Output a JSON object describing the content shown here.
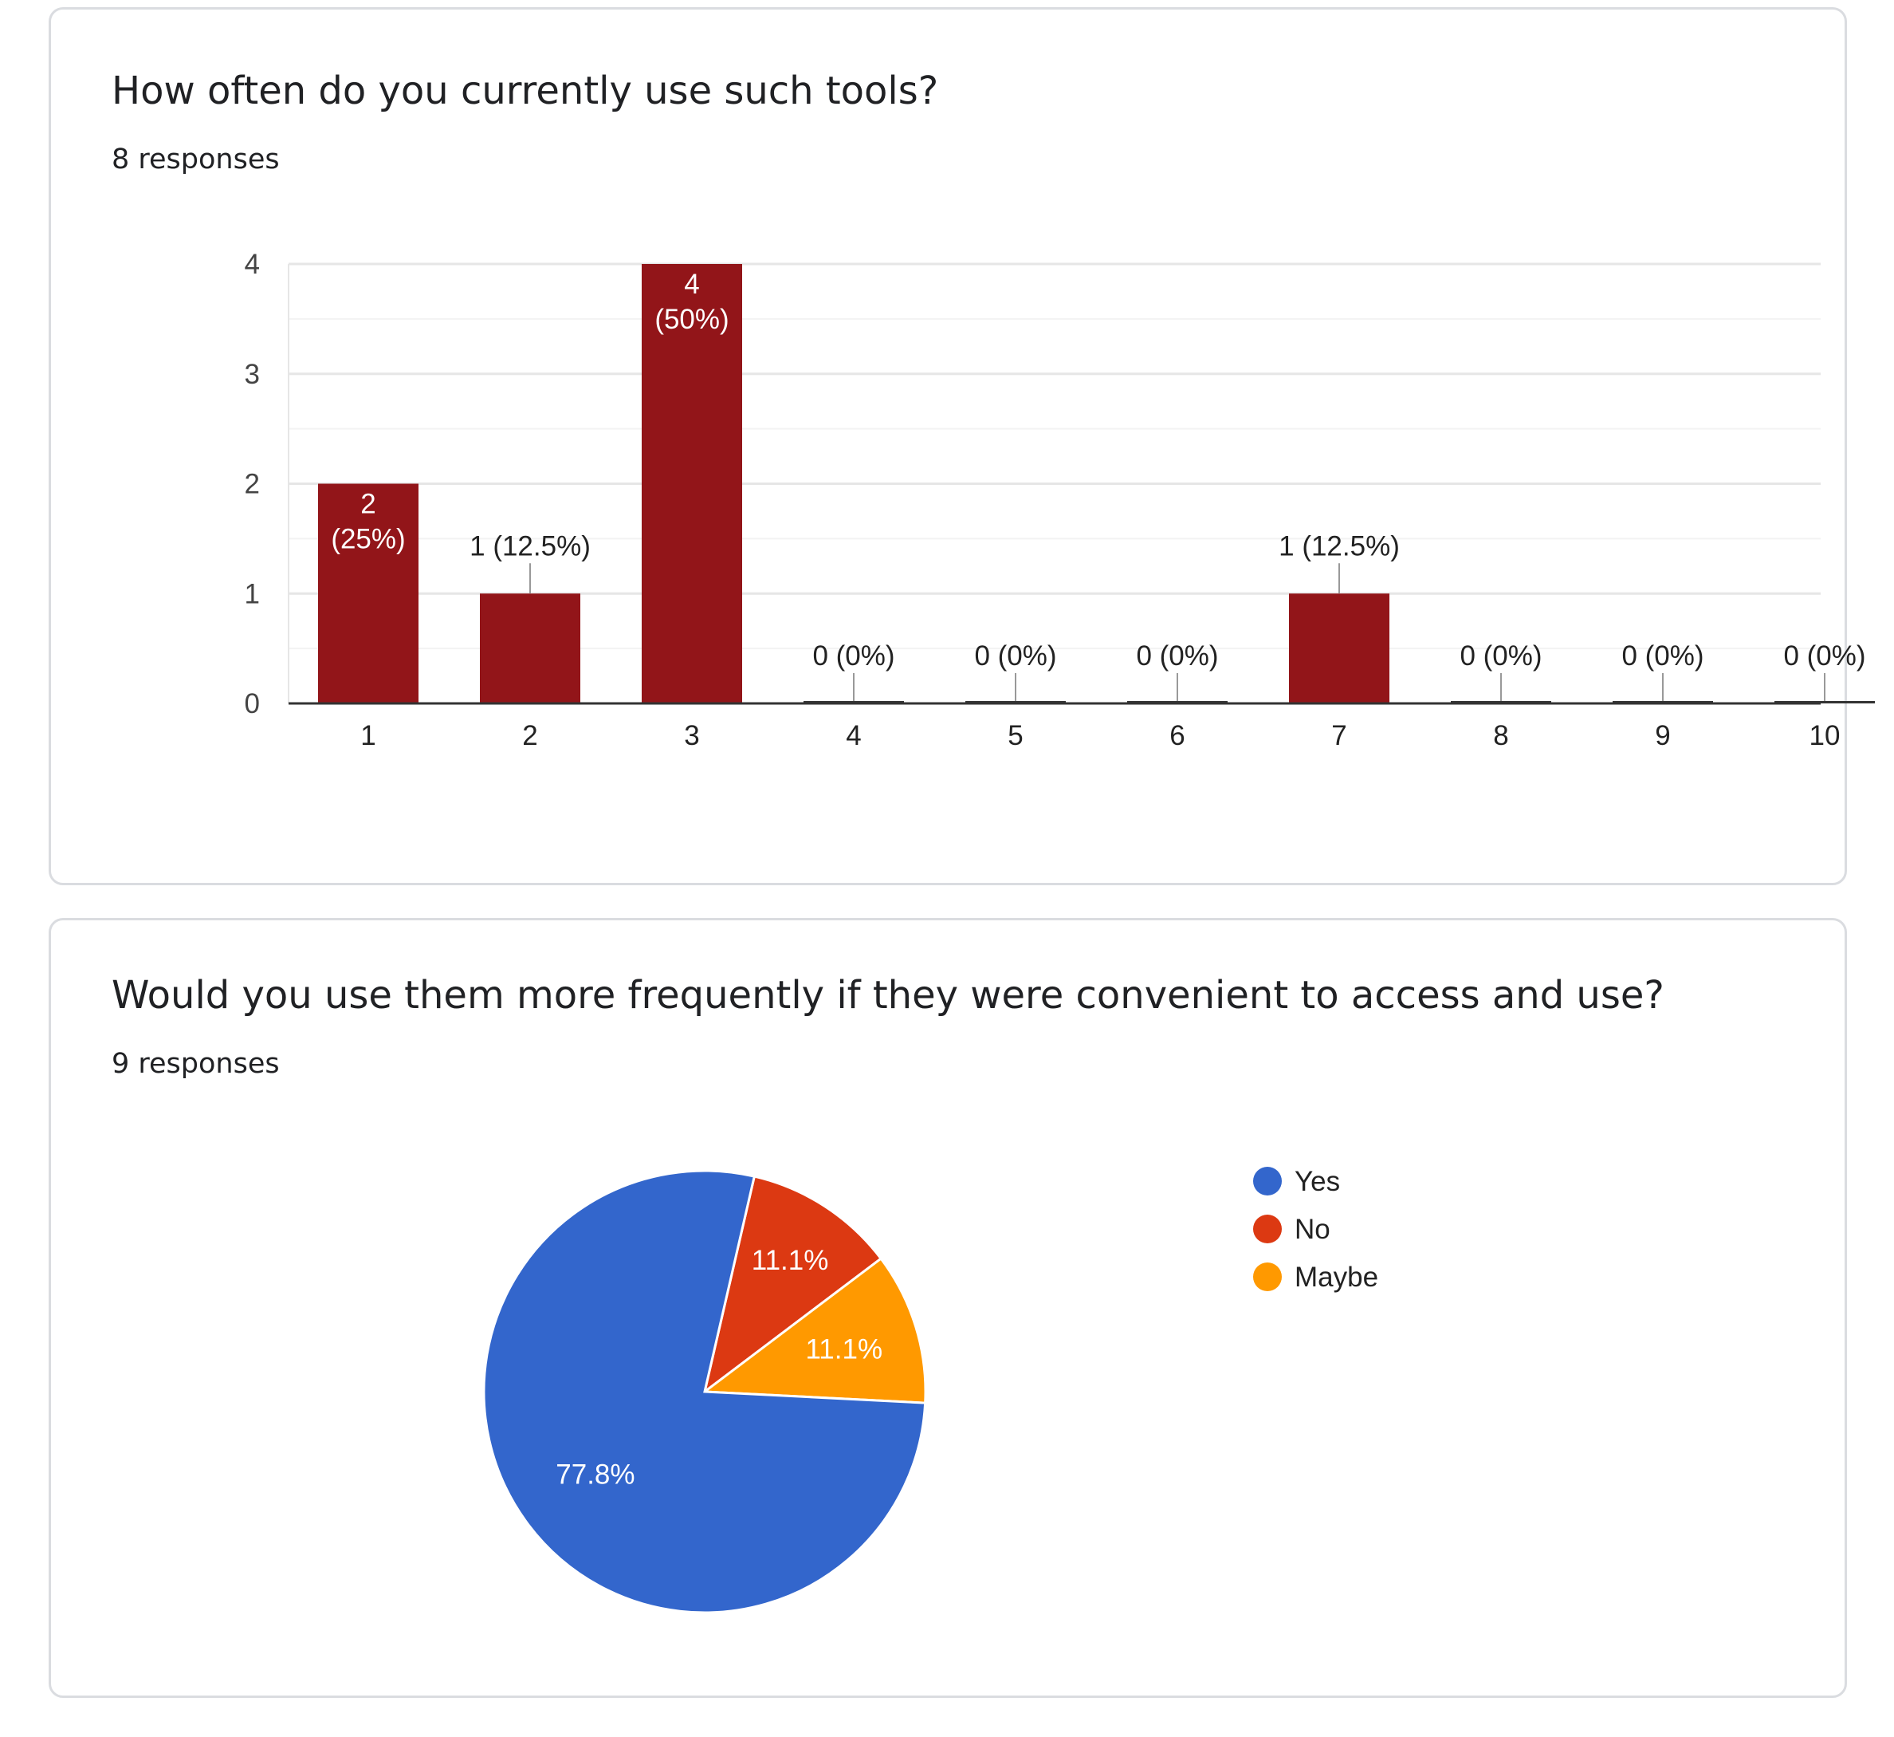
{
  "cards": [
    {
      "title": "How often do you currently use such tools?",
      "responses": "8 responses"
    },
    {
      "title": "Would you use them more frequently if they were convenient to access and use?",
      "responses": "9 responses"
    }
  ],
  "chart_data": [
    {
      "type": "bar",
      "categories": [
        "1",
        "2",
        "3",
        "4",
        "5",
        "6",
        "7",
        "8",
        "9",
        "10"
      ],
      "values": [
        2,
        1,
        4,
        0,
        0,
        0,
        1,
        0,
        0,
        0
      ],
      "data_labels": [
        "2 (25%)",
        "1 (12.5%)",
        "4 (50%)",
        "0 (0%)",
        "0 (0%)",
        "0 (0%)",
        "1 (12.5%)",
        "0 (0%)",
        "0 (0%)",
        "0 (0%)"
      ],
      "ylim": [
        0,
        4
      ],
      "yticks": [
        0,
        1,
        2,
        3,
        4
      ],
      "grid": true,
      "color": "#921519"
    },
    {
      "type": "pie",
      "labels": [
        "Yes",
        "No",
        "Maybe"
      ],
      "values": [
        77.8,
        11.1,
        11.1
      ],
      "value_labels": [
        "77.8%",
        "11.1%",
        "11.1%"
      ],
      "colors": [
        "#3366cc",
        "#dc3912",
        "#ff9900"
      ],
      "legend": "right"
    }
  ]
}
